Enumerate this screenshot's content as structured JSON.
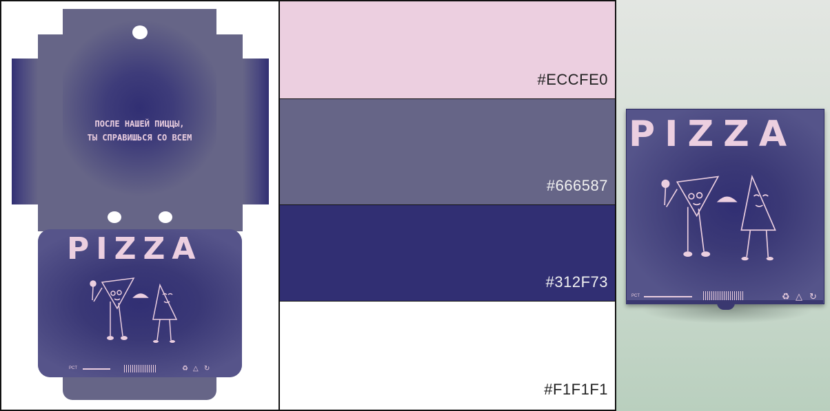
{
  "palette": [
    {
      "hex": "#ECCFE0",
      "label": "#ECCFE0",
      "text_color": "#222222"
    },
    {
      "hex": "#666587",
      "label": "#666587",
      "text_color": "#f1f1f1"
    },
    {
      "hex": "#312F73",
      "label": "#312F73",
      "text_color": "#f1f1f1"
    },
    {
      "hex": "#F1F1F1",
      "label": "#F1F1F1",
      "text_color": "#222222"
    }
  ],
  "dieline": {
    "tagline_line1": "ПОСЛЕ НАШЕЙ ПИЦЦЫ,",
    "tagline_line2": "ТЫ СПРАВИШЬСЯ СО ВСЕМ",
    "brand": "PIZZA",
    "pct_mark": "PCT",
    "icons": [
      "recycle-icon",
      "triangle-recycle-icon",
      "loop-icon"
    ]
  },
  "mockup": {
    "brand": "PIZZA",
    "pct_mark": "PCT",
    "icons": [
      "recycle-icon",
      "triangle-recycle-icon",
      "loop-icon"
    ]
  }
}
